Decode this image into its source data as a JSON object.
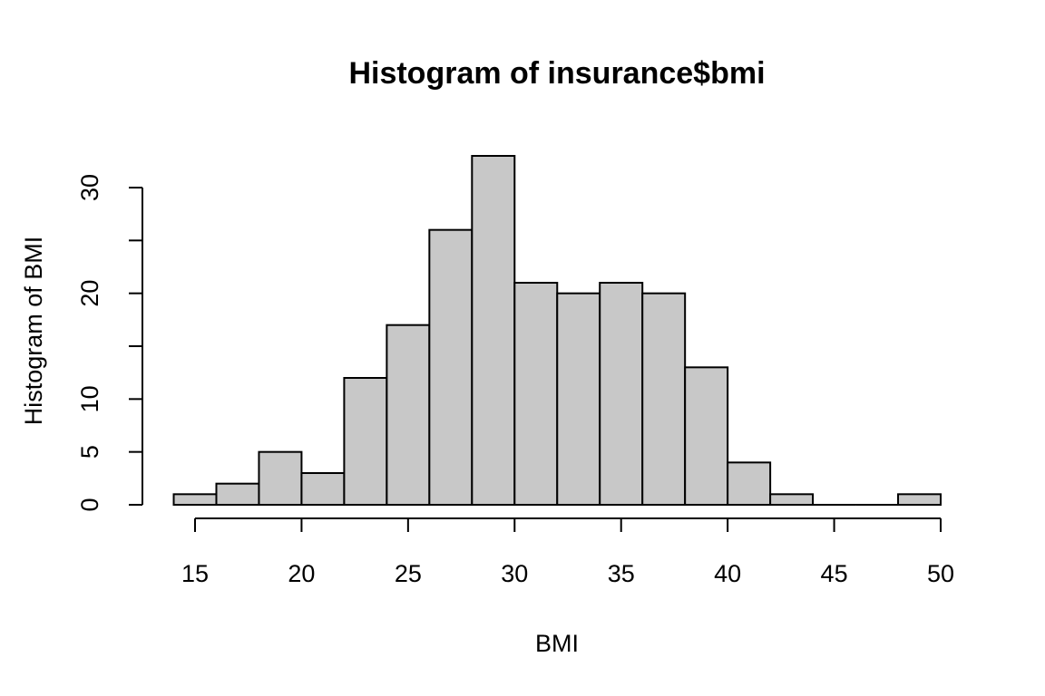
{
  "chart_data": {
    "type": "bar",
    "title": "Histogram of insurance$bmi",
    "xlabel": "BMI",
    "ylabel": "Histogram of BMI",
    "bin_edges": [
      14,
      16,
      18,
      20,
      22,
      24,
      26,
      28,
      30,
      32,
      34,
      36,
      38,
      40,
      42,
      44,
      46,
      48,
      50
    ],
    "values": [
      1,
      2,
      5,
      3,
      12,
      17,
      26,
      33,
      21,
      20,
      21,
      20,
      13,
      4,
      1,
      0,
      0,
      1
    ],
    "xlim": [
      15,
      50
    ],
    "ylim": [
      0,
      33
    ],
    "x_ticks": [
      15,
      20,
      25,
      30,
      35,
      40,
      45,
      50
    ],
    "y_ticks": [
      0,
      5,
      10,
      15,
      20,
      25,
      30
    ],
    "y_tick_labels": [
      "0",
      "5",
      "10",
      "",
      "20",
      "",
      "30"
    ],
    "bar_color": "#c8c8c8",
    "grid": false,
    "legend": "none"
  }
}
